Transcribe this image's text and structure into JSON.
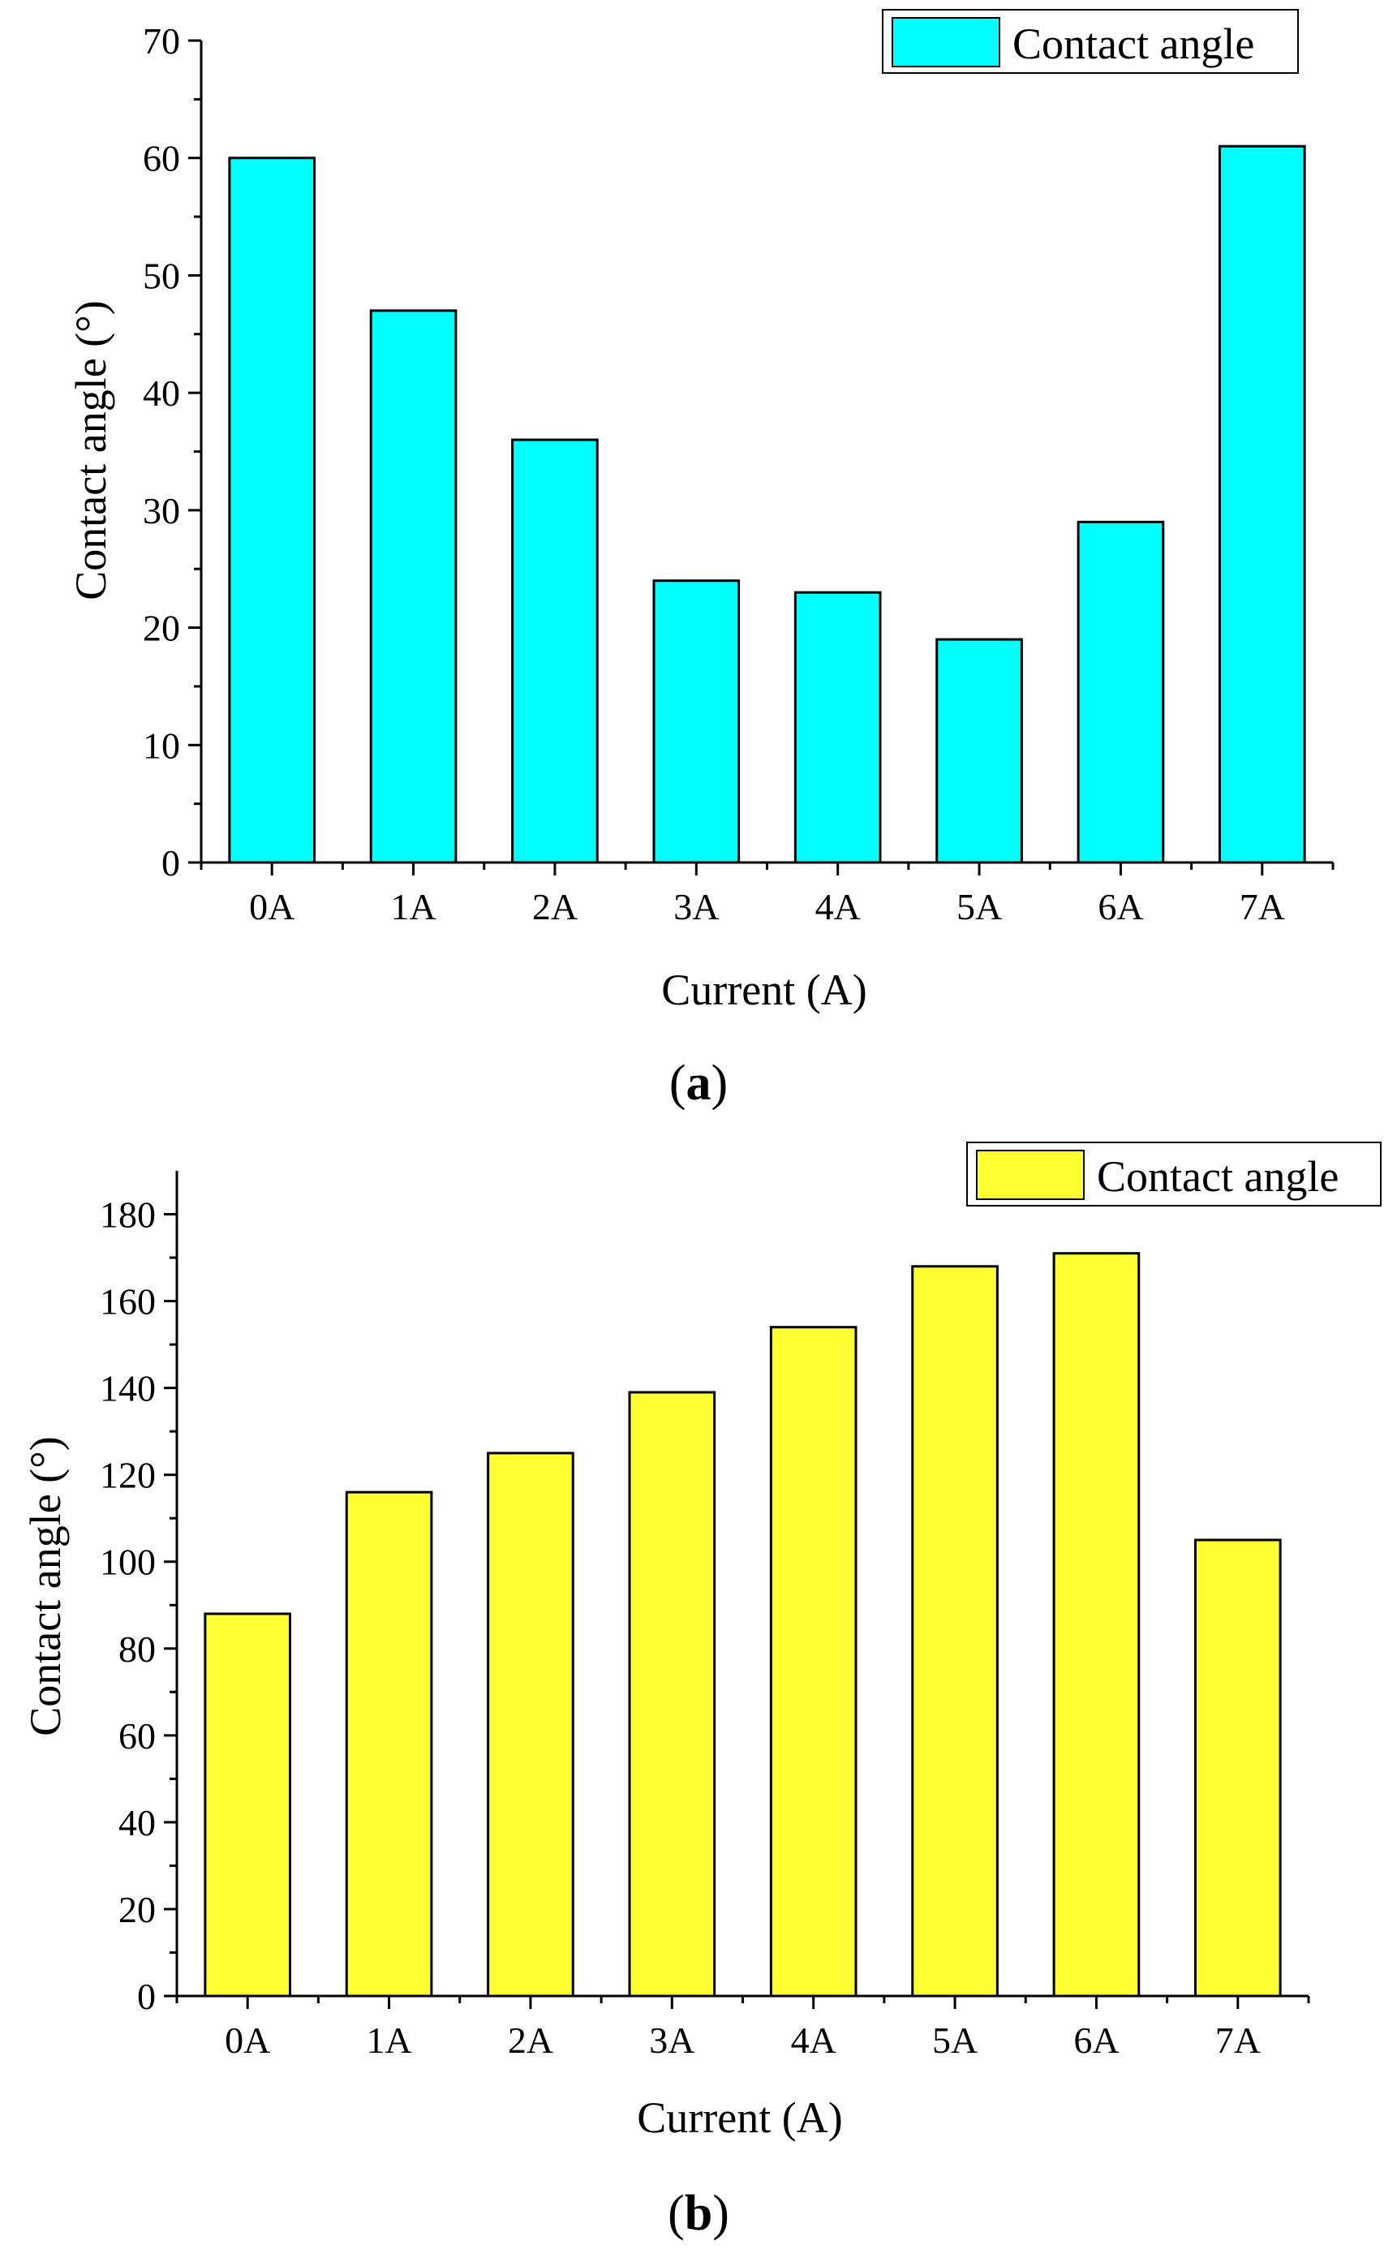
{
  "chart_data": [
    {
      "type": "bar",
      "panel_label": "a",
      "categories": [
        "0A",
        "1A",
        "2A",
        "3A",
        "4A",
        "5A",
        "6A",
        "7A"
      ],
      "values": [
        60,
        47,
        36,
        24,
        23,
        19,
        29,
        61
      ],
      "series_name": "Contact angle",
      "color": "#00ffff",
      "xlabel": "Current (A)",
      "ylabel": "Contact angle (°)",
      "ylim": [
        0,
        70
      ],
      "yticks": [
        0,
        10,
        20,
        30,
        40,
        50,
        60,
        70
      ],
      "grid": false,
      "legend_position": "top-right"
    },
    {
      "type": "bar",
      "panel_label": "b",
      "categories": [
        "0A",
        "1A",
        "2A",
        "3A",
        "4A",
        "5A",
        "6A",
        "7A"
      ],
      "values": [
        88,
        116,
        125,
        139,
        154,
        168,
        171,
        105
      ],
      "series_name": "Contact angle",
      "color": "#ffff33",
      "xlabel": "Current (A)",
      "ylabel": "Contact angle (°)",
      "ylim": [
        0,
        190
      ],
      "yticks": [
        0,
        20,
        40,
        60,
        80,
        100,
        120,
        140,
        160,
        180
      ],
      "grid": false,
      "legend_position": "top-right"
    }
  ]
}
